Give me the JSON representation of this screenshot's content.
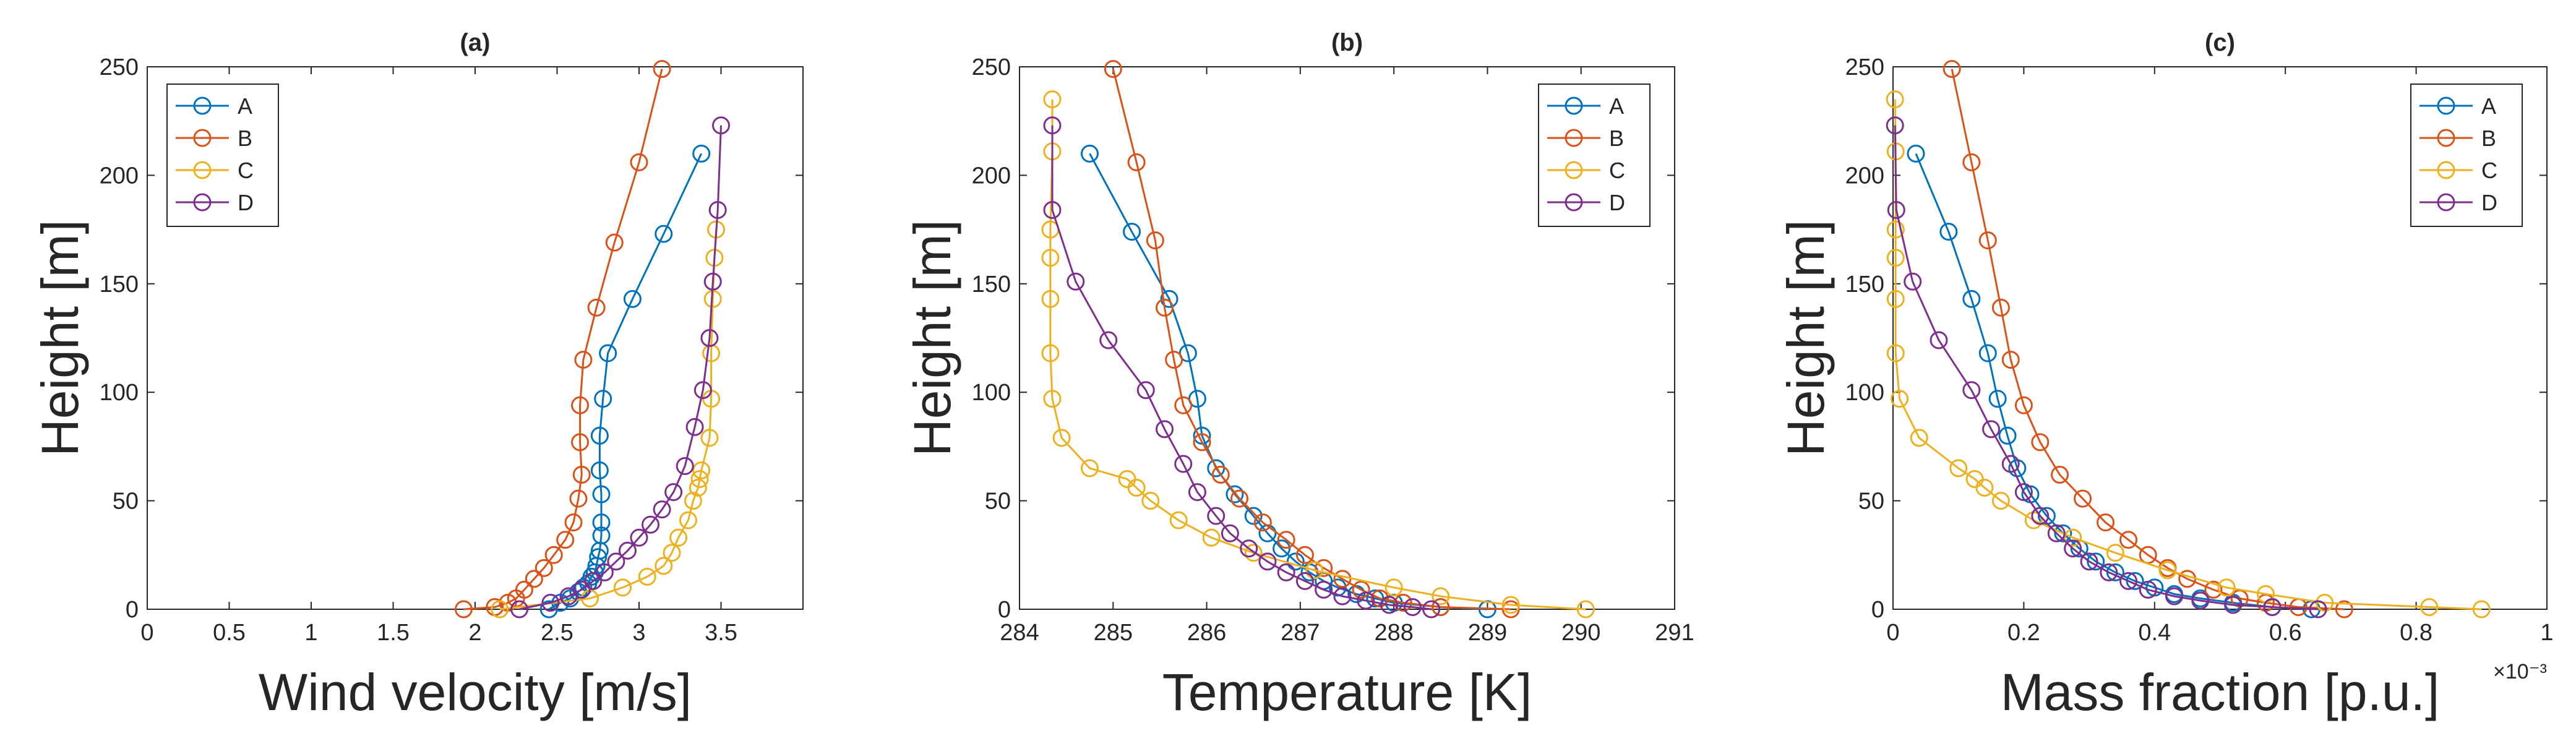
{
  "chart_data": [
    {
      "type": "line",
      "title": "(a)",
      "xlabel": "Wind velocity [m/s]",
      "ylabel": "Height [m]",
      "xlim": [
        0,
        4
      ],
      "ylim": [
        0,
        250
      ],
      "xticks": [
        0,
        0.5,
        1,
        1.5,
        2,
        2.5,
        3,
        3.5
      ],
      "xtick_labels": [
        "0",
        "0.5",
        "1",
        "1.5",
        "2",
        "2.5",
        "3",
        "3.5"
      ],
      "yticks": [
        0,
        50,
        100,
        150,
        200,
        250
      ],
      "ytick_labels": [
        "0",
        "50",
        "100",
        "150",
        "200",
        "250"
      ],
      "exponent_label": "",
      "legend_position": "top-left",
      "series": [
        {
          "name": "A",
          "x": [
            2.45,
            2.52,
            2.58,
            2.63,
            2.66,
            2.69,
            2.71,
            2.73,
            2.74,
            2.75,
            2.76,
            2.77,
            2.77,
            2.77,
            2.76,
            2.76,
            2.78,
            2.81,
            2.96,
            3.15,
            3.38
          ],
          "y": [
            0,
            3,
            5,
            8,
            10,
            12,
            15,
            17,
            20,
            24,
            27,
            34,
            40,
            53,
            64,
            80,
            97,
            118,
            143,
            173,
            210
          ]
        },
        {
          "name": "B",
          "x": [
            1.93,
            2.12,
            2.2,
            2.25,
            2.3,
            2.36,
            2.42,
            2.48,
            2.55,
            2.6,
            2.63,
            2.65,
            2.64,
            2.64,
            2.66,
            2.74,
            2.85,
            3.0,
            3.14
          ],
          "y": [
            0,
            1,
            3,
            5,
            9,
            14,
            19,
            25,
            32,
            40,
            51,
            62,
            77,
            94,
            115,
            139,
            169,
            206,
            249
          ]
        },
        {
          "name": "C",
          "x": [
            2.15,
            2.7,
            2.9,
            3.05,
            3.15,
            3.2,
            3.24,
            3.3,
            3.33,
            3.36,
            3.37,
            3.38,
            3.43,
            3.44,
            3.44,
            3.45,
            3.46,
            3.47
          ],
          "y": [
            0,
            5,
            10,
            15,
            20,
            26,
            33,
            41,
            50,
            56,
            60,
            64,
            79,
            97,
            118,
            143,
            162,
            175
          ]
        },
        {
          "name": "D",
          "x": [
            2.27,
            2.46,
            2.57,
            2.65,
            2.72,
            2.79,
            2.86,
            2.93,
            3.0,
            3.07,
            3.14,
            3.21,
            3.28,
            3.34,
            3.39,
            3.43,
            3.45,
            3.48,
            3.5
          ],
          "y": [
            0,
            3,
            6,
            9,
            13,
            17,
            22,
            27,
            33,
            39,
            46,
            54,
            66,
            84,
            101,
            125,
            151,
            184,
            223
          ]
        }
      ]
    },
    {
      "type": "line",
      "title": "(b)",
      "xlabel": "Temperature [K]",
      "ylabel": "Height [m]",
      "xlim": [
        284,
        291
      ],
      "ylim": [
        0,
        250
      ],
      "xticks": [
        284,
        285,
        286,
        287,
        288,
        289,
        290,
        291
      ],
      "xtick_labels": [
        "284",
        "285",
        "286",
        "287",
        "288",
        "289",
        "290",
        "291"
      ],
      "yticks": [
        0,
        50,
        100,
        150,
        200,
        250
      ],
      "ytick_labels": [
        "0",
        "50",
        "100",
        "150",
        "200",
        "250"
      ],
      "exponent_label": "",
      "legend_position": "top-right",
      "series": [
        {
          "name": "A",
          "x": [
            284.75,
            285.2,
            285.6,
            285.8,
            285.9,
            285.95,
            286.1,
            286.3,
            286.5,
            286.65,
            286.8,
            286.95,
            287.1,
            287.25,
            287.4,
            287.6,
            287.8,
            288.0,
            288.5,
            289.0
          ],
          "y": [
            210,
            174,
            143,
            118,
            97,
            80,
            65,
            53,
            43,
            35,
            28,
            22,
            17,
            13,
            10,
            7,
            5,
            3,
            1,
            0
          ]
        },
        {
          "name": "B",
          "x": [
            285.0,
            285.25,
            285.45,
            285.55,
            285.65,
            285.75,
            285.95,
            286.15,
            286.35,
            286.6,
            286.85,
            287.05,
            287.25,
            287.45,
            287.65,
            287.85,
            288.1,
            288.5,
            289.25
          ],
          "y": [
            249,
            206,
            170,
            139,
            115,
            94,
            77,
            62,
            51,
            40,
            32,
            25,
            19,
            14,
            9,
            5,
            3,
            1,
            0
          ]
        },
        {
          "name": "C",
          "x": [
            284.35,
            284.35,
            284.33,
            284.33,
            284.33,
            284.33,
            284.35,
            284.45,
            284.75,
            285.15,
            285.25,
            285.4,
            285.7,
            286.05,
            286.5,
            287.15,
            288.0,
            288.5,
            289.25,
            290.05
          ],
          "y": [
            235,
            211,
            175,
            162,
            143,
            118,
            97,
            79,
            65,
            60,
            56,
            50,
            41,
            33,
            26,
            18,
            10,
            6,
            2,
            0
          ]
        },
        {
          "name": "D",
          "x": [
            284.35,
            284.35,
            284.6,
            284.95,
            285.35,
            285.55,
            285.75,
            285.9,
            286.1,
            286.25,
            286.45,
            286.65,
            286.85,
            287.05,
            287.25,
            287.45,
            287.7,
            287.95,
            288.2,
            288.4
          ],
          "y": [
            223,
            184,
            151,
            124,
            101,
            83,
            67,
            54,
            43,
            35,
            28,
            22,
            17,
            13,
            9,
            6,
            4,
            2,
            1,
            0
          ]
        }
      ]
    },
    {
      "type": "line",
      "title": "(c)",
      "xlabel": "Mass fraction [p.u.]",
      "ylabel": "Height [m]",
      "xlim": [
        0,
        1
      ],
      "ylim": [
        0,
        250
      ],
      "xticks": [
        0,
        0.2,
        0.4,
        0.6,
        0.8,
        1
      ],
      "xtick_labels": [
        "0",
        "0.2",
        "0.4",
        "0.6",
        "0.8",
        "1"
      ],
      "yticks": [
        0,
        50,
        100,
        150,
        200,
        250
      ],
      "ytick_labels": [
        "0",
        "50",
        "100",
        "150",
        "200",
        "250"
      ],
      "exponent_label": "×10⁻³",
      "legend_position": "top-right",
      "series": [
        {
          "name": "A",
          "x": [
            0.035,
            0.085,
            0.12,
            0.145,
            0.16,
            0.175,
            0.19,
            0.21,
            0.235,
            0.26,
            0.285,
            0.31,
            0.34,
            0.37,
            0.4,
            0.43,
            0.47,
            0.52,
            0.58,
            0.64
          ],
          "y": [
            210,
            174,
            143,
            118,
            97,
            80,
            65,
            53,
            43,
            35,
            28,
            22,
            17,
            13,
            10,
            7,
            5,
            3,
            1,
            0
          ]
        },
        {
          "name": "B",
          "x": [
            0.09,
            0.12,
            0.145,
            0.165,
            0.18,
            0.2,
            0.225,
            0.255,
            0.29,
            0.325,
            0.36,
            0.39,
            0.42,
            0.45,
            0.49,
            0.53,
            0.57,
            0.62,
            0.69
          ],
          "y": [
            249,
            206,
            170,
            139,
            115,
            94,
            77,
            62,
            51,
            40,
            32,
            25,
            19,
            14,
            9,
            5,
            3,
            1,
            0
          ]
        },
        {
          "name": "C",
          "x": [
            0.003,
            0.004,
            0.004,
            0.004,
            0.004,
            0.004,
            0.01,
            0.04,
            0.1,
            0.125,
            0.14,
            0.165,
            0.215,
            0.275,
            0.34,
            0.42,
            0.51,
            0.57,
            0.66,
            0.82,
            0.9
          ],
          "y": [
            235,
            211,
            175,
            162,
            143,
            118,
            97,
            79,
            65,
            60,
            56,
            50,
            41,
            33,
            26,
            18,
            10,
            7,
            3,
            1,
            0
          ]
        },
        {
          "name": "D",
          "x": [
            0.003,
            0.005,
            0.03,
            0.07,
            0.12,
            0.15,
            0.18,
            0.2,
            0.225,
            0.25,
            0.275,
            0.3,
            0.33,
            0.36,
            0.39,
            0.43,
            0.47,
            0.52,
            0.58,
            0.65
          ],
          "y": [
            223,
            184,
            151,
            124,
            101,
            83,
            67,
            54,
            43,
            35,
            28,
            22,
            17,
            13,
            9,
            6,
            4,
            2,
            1,
            0
          ]
        }
      ]
    }
  ],
  "colors": {
    "A": "#0072BD",
    "B": "#D95319",
    "C": "#EDB120",
    "D": "#7E2F8E",
    "axis": "#262626",
    "background": "#ffffff"
  }
}
